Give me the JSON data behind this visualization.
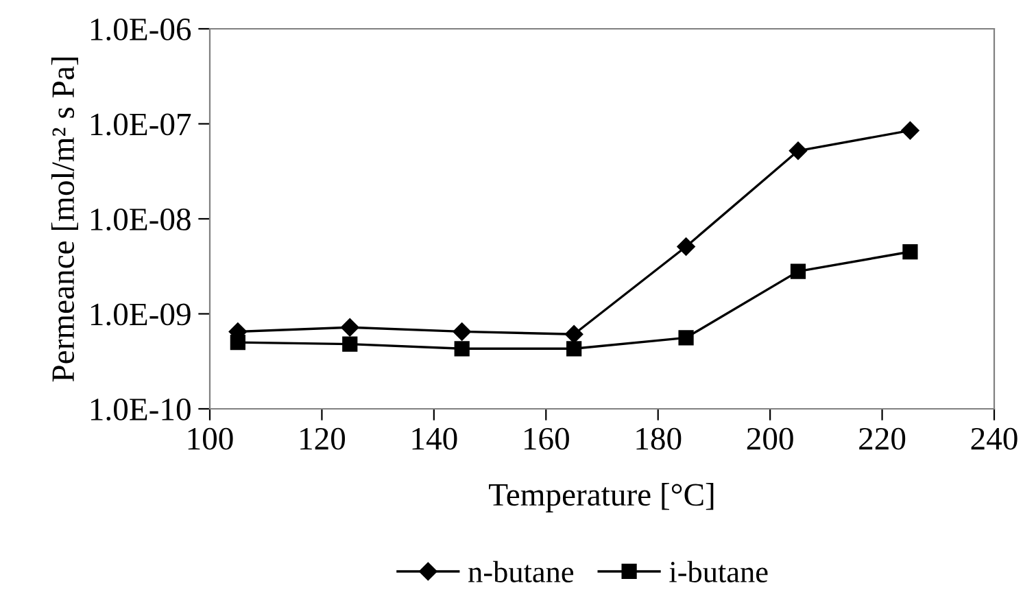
{
  "chart_data": {
    "type": "line",
    "xlabel": "Temperature [°C]",
    "ylabel": "Permeance [mol/m² s Pa]",
    "x": [
      105,
      125,
      145,
      165,
      185,
      205,
      225
    ],
    "series": [
      {
        "name": "n-butane",
        "color": "#000000",
        "marker": "diamond",
        "values": [
          6.5e-10,
          7.2e-10,
          6.5e-10,
          6.1e-10,
          5.1e-09,
          5.2e-08,
          8.5e-08
        ]
      },
      {
        "name": "i-butane",
        "color": "#000000",
        "marker": "square",
        "values": [
          5e-10,
          4.8e-10,
          4.3e-10,
          4.3e-10,
          5.6e-10,
          2.8e-09,
          4.5e-09
        ]
      }
    ],
    "log": true,
    "xlim": [
      100,
      240
    ],
    "xticks": [
      100,
      120,
      140,
      160,
      180,
      200,
      220,
      240
    ],
    "ylim": [
      1e-10,
      1e-06
    ],
    "yticks": [
      {
        "value": 1e-10,
        "label": "1.0E-10"
      },
      {
        "value": 1e-09,
        "label": "1.0E-09"
      },
      {
        "value": 1e-08,
        "label": "1.0E-08"
      },
      {
        "value": 1e-07,
        "label": "1.0E-07"
      },
      {
        "value": 1e-06,
        "label": "1.0E-06"
      }
    ],
    "grid": false,
    "legend": "bottom",
    "line_style": "solid"
  }
}
